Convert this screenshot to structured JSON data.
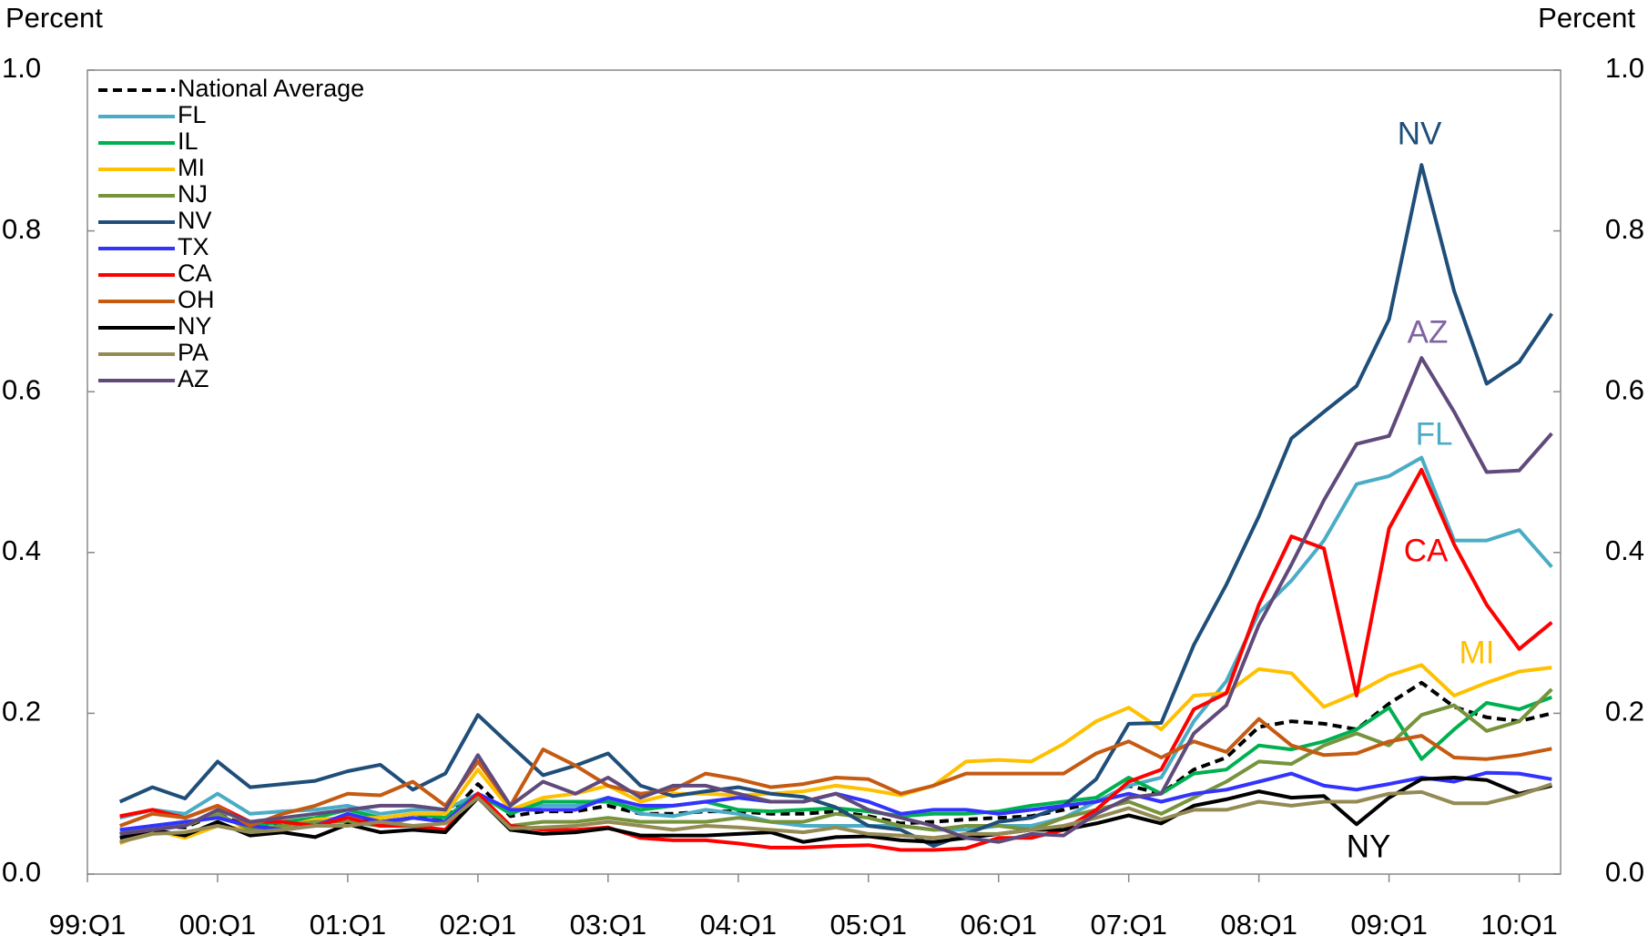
{
  "chart_data": {
    "type": "line",
    "y_label": "Percent",
    "y2_label": "Percent",
    "ylim": [
      0,
      1
    ],
    "yticks": [
      {
        "value": 0,
        "label": "0.0"
      },
      0.2,
      0.4,
      0.6,
      0.8,
      {
        "value": 1,
        "label": "1.0"
      }
    ],
    "y2lim": [
      0,
      1
    ],
    "y2ticks": [
      {
        "value": 0,
        "label": "0.0"
      },
      0.2,
      0.4,
      0.6,
      0.8,
      {
        "value": 1,
        "label": "1.0"
      }
    ],
    "legend": "top-left",
    "categories": [
      "99:Q1",
      null,
      null,
      null,
      "00:Q1",
      null,
      null,
      null,
      "01:Q1",
      null,
      null,
      null,
      "02:Q1",
      null,
      null,
      null,
      "03:Q1",
      null,
      null,
      null,
      "04:Q1",
      null,
      null,
      null,
      "05:Q1",
      null,
      null,
      null,
      "06:Q1",
      null,
      null,
      null,
      "07:Q1",
      null,
      null,
      null,
      "08:Q1",
      null,
      null,
      null,
      "09:Q1",
      null,
      null,
      null,
      "10:Q1",
      null
    ],
    "series": [
      {
        "name": "National Average",
        "color": "#000000",
        "dashed": true,
        "values": [
          null,
          0.05,
          0.06,
          0.058,
          0.075,
          0.058,
          0.06,
          0.062,
          0.07,
          0.065,
          0.07,
          0.068,
          0.112,
          0.072,
          0.078,
          0.078,
          0.085,
          0.075,
          0.075,
          0.078,
          0.078,
          0.075,
          0.075,
          0.078,
          0.072,
          0.063,
          0.065,
          0.068,
          0.07,
          0.072,
          0.08,
          0.09,
          0.11,
          0.1,
          0.13,
          0.145,
          0.183,
          0.19,
          0.187,
          0.18,
          0.212,
          0.238,
          0.208,
          0.195,
          0.19,
          0.2
        ]
      },
      {
        "name": "FL",
        "color": "#4bacc6",
        "values": [
          null,
          0.07,
          0.08,
          0.075,
          0.1,
          0.075,
          0.078,
          0.08,
          0.085,
          0.075,
          0.08,
          0.08,
          0.1,
          0.078,
          0.085,
          0.085,
          0.095,
          0.075,
          0.072,
          0.08,
          0.075,
          0.065,
          0.06,
          0.06,
          0.06,
          0.06,
          0.055,
          0.055,
          0.06,
          0.06,
          0.07,
          0.09,
          0.11,
          0.12,
          0.19,
          0.24,
          0.325,
          0.365,
          0.415,
          0.485,
          0.495,
          0.518,
          0.415,
          0.415,
          0.428,
          0.382
        ]
      },
      {
        "name": "IL",
        "color": "#00b050",
        "values": [
          null,
          0.05,
          0.06,
          0.065,
          0.07,
          0.06,
          0.065,
          0.07,
          0.08,
          0.07,
          0.075,
          0.07,
          0.1,
          0.075,
          0.09,
          0.09,
          0.09,
          0.08,
          0.085,
          0.09,
          0.08,
          0.078,
          0.08,
          0.082,
          0.078,
          0.072,
          0.075,
          0.075,
          0.078,
          0.085,
          0.09,
          0.095,
          0.12,
          0.1,
          0.125,
          0.13,
          0.16,
          0.155,
          0.165,
          0.18,
          0.207,
          0.143,
          0.18,
          0.213,
          0.205,
          0.22
        ]
      },
      {
        "name": "MI",
        "color": "#ffc000",
        "values": [
          null,
          0.038,
          0.055,
          0.045,
          0.06,
          0.055,
          0.058,
          0.068,
          0.07,
          0.07,
          0.075,
          0.075,
          0.13,
          0.08,
          0.095,
          0.1,
          0.11,
          0.09,
          0.1,
          0.1,
          0.098,
          0.1,
          0.103,
          0.11,
          0.105,
          0.098,
          0.11,
          0.14,
          0.142,
          0.14,
          0.162,
          0.19,
          0.207,
          0.18,
          0.222,
          0.225,
          0.255,
          0.25,
          0.208,
          0.225,
          0.247,
          0.26,
          0.222,
          0.238,
          0.252,
          0.257
        ]
      },
      {
        "name": "NJ",
        "color": "#77933c",
        "values": [
          null,
          0.05,
          0.06,
          0.06,
          0.075,
          0.055,
          0.06,
          0.065,
          0.065,
          0.06,
          0.07,
          0.065,
          0.1,
          0.06,
          0.065,
          0.065,
          0.07,
          0.065,
          0.065,
          0.065,
          0.07,
          0.065,
          0.065,
          0.075,
          0.07,
          0.06,
          0.055,
          0.06,
          0.06,
          0.055,
          0.07,
          0.08,
          0.09,
          0.075,
          0.095,
          0.115,
          0.14,
          0.137,
          0.16,
          0.175,
          0.16,
          0.198,
          0.21,
          0.178,
          0.19,
          0.23
        ]
      },
      {
        "name": "NV",
        "color": "#1f4e79",
        "values": [
          null,
          0.09,
          0.108,
          0.094,
          0.14,
          0.108,
          0.112,
          0.116,
          0.128,
          0.136,
          0.105,
          0.125,
          0.198,
          0.16,
          0.123,
          0.135,
          0.15,
          0.11,
          0.097,
          0.103,
          0.108,
          0.1,
          0.096,
          0.083,
          0.06,
          0.055,
          0.035,
          0.05,
          0.065,
          0.07,
          0.085,
          0.118,
          0.187,
          0.188,
          0.285,
          0.36,
          0.445,
          0.542,
          0.575,
          0.607,
          0.69,
          0.882,
          0.725,
          0.61,
          0.637,
          0.697
        ]
      },
      {
        "name": "TX",
        "color": "#3333ff",
        "values": [
          null,
          0.055,
          0.06,
          0.065,
          0.07,
          0.06,
          0.055,
          0.06,
          0.075,
          0.065,
          0.07,
          0.065,
          0.1,
          0.08,
          0.08,
          0.08,
          0.095,
          0.085,
          0.085,
          0.09,
          0.095,
          0.09,
          0.09,
          0.1,
          0.09,
          0.075,
          0.08,
          0.08,
          0.075,
          0.08,
          0.085,
          0.09,
          0.1,
          0.09,
          0.1,
          0.105,
          0.115,
          0.125,
          0.11,
          0.105,
          0.112,
          0.12,
          0.115,
          0.126,
          0.125,
          0.118
        ]
      },
      {
        "name": "CA",
        "color": "#ff0000",
        "values": [
          null,
          0.072,
          0.08,
          0.07,
          0.085,
          0.065,
          0.065,
          0.06,
          0.07,
          0.06,
          0.06,
          0.055,
          0.1,
          0.06,
          0.055,
          0.055,
          0.058,
          0.045,
          0.042,
          0.042,
          0.038,
          0.033,
          0.033,
          0.035,
          0.036,
          0.03,
          0.03,
          0.032,
          0.045,
          0.045,
          0.055,
          0.08,
          0.115,
          0.13,
          0.205,
          0.225,
          0.335,
          0.42,
          0.405,
          0.222,
          0.43,
          0.503,
          0.41,
          0.335,
          0.28,
          0.313
        ]
      },
      {
        "name": "OH",
        "color": "#c55a11",
        "values": [
          null,
          0.06,
          0.075,
          0.07,
          0.085,
          0.06,
          0.075,
          0.085,
          0.1,
          0.098,
          0.115,
          0.085,
          0.14,
          0.085,
          0.155,
          0.135,
          0.11,
          0.1,
          0.105,
          0.125,
          0.118,
          0.108,
          0.112,
          0.12,
          0.118,
          0.1,
          0.11,
          0.125,
          0.125,
          0.125,
          0.125,
          0.15,
          0.165,
          0.145,
          0.165,
          0.152,
          0.193,
          0.16,
          0.148,
          0.15,
          0.165,
          0.172,
          0.145,
          0.143,
          0.148,
          0.156
        ]
      },
      {
        "name": "NY",
        "color": "#000000",
        "values": [
          null,
          0.045,
          0.055,
          0.048,
          0.065,
          0.048,
          0.052,
          0.046,
          0.062,
          0.052,
          0.055,
          0.052,
          0.095,
          0.055,
          0.05,
          0.052,
          0.057,
          0.048,
          0.048,
          0.048,
          0.05,
          0.052,
          0.04,
          0.046,
          0.047,
          0.042,
          0.04,
          0.045,
          0.05,
          0.055,
          0.055,
          0.063,
          0.073,
          0.063,
          0.085,
          0.093,
          0.103,
          0.095,
          0.097,
          0.062,
          0.095,
          0.118,
          0.12,
          0.117,
          0.1,
          0.11
        ]
      },
      {
        "name": "PA",
        "color": "#948a54",
        "values": [
          null,
          0.04,
          0.05,
          0.052,
          0.06,
          0.052,
          0.055,
          0.06,
          0.06,
          0.065,
          0.06,
          0.063,
          0.095,
          0.057,
          0.058,
          0.06,
          0.065,
          0.06,
          0.055,
          0.06,
          0.058,
          0.055,
          0.052,
          0.058,
          0.05,
          0.048,
          0.045,
          0.05,
          0.05,
          0.055,
          0.06,
          0.07,
          0.082,
          0.068,
          0.08,
          0.08,
          0.09,
          0.085,
          0.09,
          0.09,
          0.1,
          0.102,
          0.088,
          0.088,
          0.098,
          0.112
        ]
      },
      {
        "name": "AZ",
        "color": "#604a7b",
        "values": [
          null,
          0.05,
          0.055,
          0.06,
          0.08,
          0.065,
          0.07,
          0.075,
          0.08,
          0.085,
          0.085,
          0.08,
          0.148,
          0.085,
          0.115,
          0.1,
          0.12,
          0.095,
          0.11,
          0.11,
          0.1,
          0.09,
          0.09,
          0.1,
          0.08,
          0.07,
          0.06,
          0.045,
          0.04,
          0.05,
          0.048,
          0.075,
          0.095,
          0.1,
          0.175,
          0.21,
          0.31,
          0.385,
          0.465,
          0.535,
          0.545,
          0.642,
          0.575,
          0.5,
          0.502,
          0.548
        ]
      }
    ],
    "annotations": [
      {
        "text": "NV",
        "color": "#1f4e79"
      },
      {
        "text": "AZ",
        "color": "#8064a2"
      },
      {
        "text": "FL",
        "color": "#4bacc6"
      },
      {
        "text": "CA",
        "color": "#ff0000"
      },
      {
        "text": "MI",
        "color": "#ffc000"
      },
      {
        "text": "NY",
        "color": "#000000"
      }
    ]
  }
}
